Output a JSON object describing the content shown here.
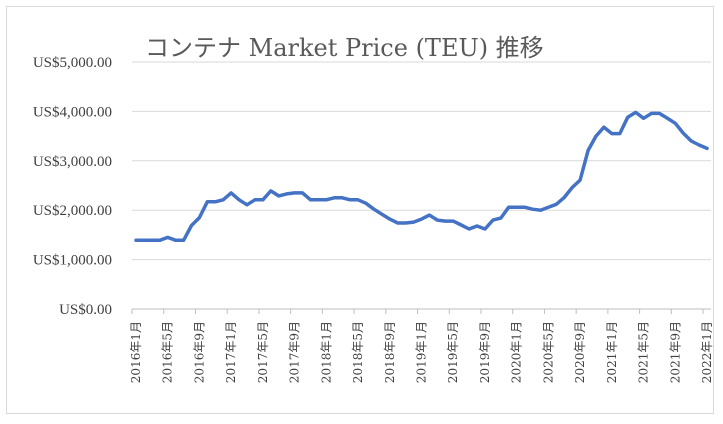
{
  "chart_data": {
    "type": "line",
    "title": "コンテナ Market Price (TEU) 推移",
    "xlabel": "",
    "ylabel": "",
    "ylim": [
      0,
      5000
    ],
    "y_tick_labels": [
      "US$0.00",
      "US$1,000.00",
      "US$2,000.00",
      "US$3,000.00",
      "US$4,000.00",
      "US$5,000.00"
    ],
    "y_tick_values": [
      0,
      1000,
      2000,
      3000,
      4000,
      5000
    ],
    "x_tick_labels": [
      "2016年1月",
      "2016年5月",
      "2016年9月",
      "2017年1月",
      "2017年5月",
      "2017年9月",
      "2018年1月",
      "2018年5月",
      "2018年9月",
      "2019年1月",
      "2019年5月",
      "2019年9月",
      "2020年1月",
      "2020年5月",
      "2020年9月",
      "2021年1月",
      "2021年5月",
      "2021年9月",
      "2022年1月"
    ],
    "x_tick_every_months": 4,
    "grid": "horizontal",
    "legend": "none",
    "line_color": "#4472c4",
    "series": [
      {
        "values": [
          1390,
          1390,
          1390,
          1390,
          1450,
          1390,
          1390,
          1690,
          1850,
          2170,
          2170,
          2210,
          2350,
          2210,
          2110,
          2210,
          2210,
          2390,
          2290,
          2330,
          2350,
          2350,
          2210,
          2210,
          2210,
          2250,
          2250,
          2210,
          2210,
          2140,
          2020,
          1920,
          1820,
          1740,
          1740,
          1760,
          1820,
          1900,
          1800,
          1780,
          1780,
          1700,
          1620,
          1680,
          1620,
          1800,
          1840,
          2060,
          2060,
          2060,
          2020,
          2000,
          2060,
          2120,
          2260,
          2460,
          2610,
          3210,
          3500,
          3680,
          3550,
          3550,
          3880,
          3980,
          3860,
          3960,
          3960,
          3860,
          3760,
          3560,
          3400,
          3320,
          3250
        ]
      }
    ]
  }
}
